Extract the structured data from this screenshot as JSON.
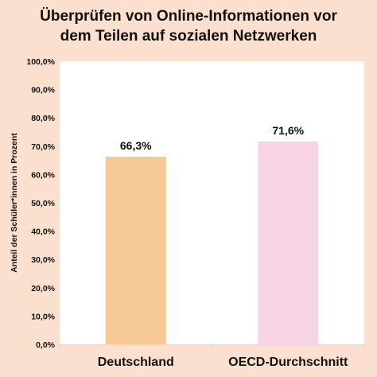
{
  "chart_data": {
    "type": "bar",
    "title_lines": [
      "Überprüfen von Online-Informationen vor",
      "dem Teilen auf sozialen Netzwerken"
    ],
    "ylabel": "Anteil der Schüler*innen in Prozent",
    "xlabel": "",
    "categories": [
      "Deutschland",
      "OECD-Durchschnitt"
    ],
    "values": [
      66.3,
      71.6
    ],
    "value_labels": [
      "66,3%",
      "71,6%"
    ],
    "bar_colors": [
      "#f5c896",
      "#f7d3e6"
    ],
    "ylim": [
      0,
      100
    ],
    "yticks": [
      0,
      10,
      20,
      30,
      40,
      50,
      60,
      70,
      80,
      90,
      100
    ],
    "ytick_labels": [
      "0,0%",
      "10,0%",
      "20,0%",
      "30,0%",
      "40,0%",
      "50,0%",
      "60,0%",
      "70,0%",
      "80,0%",
      "90,0%",
      "100,0%"
    ],
    "grid": false,
    "legend": "none"
  },
  "colors": {
    "background": "#fbe0cf",
    "plot_area": "#ffffff",
    "axis": "#d8d8d8",
    "text": "#111111"
  }
}
